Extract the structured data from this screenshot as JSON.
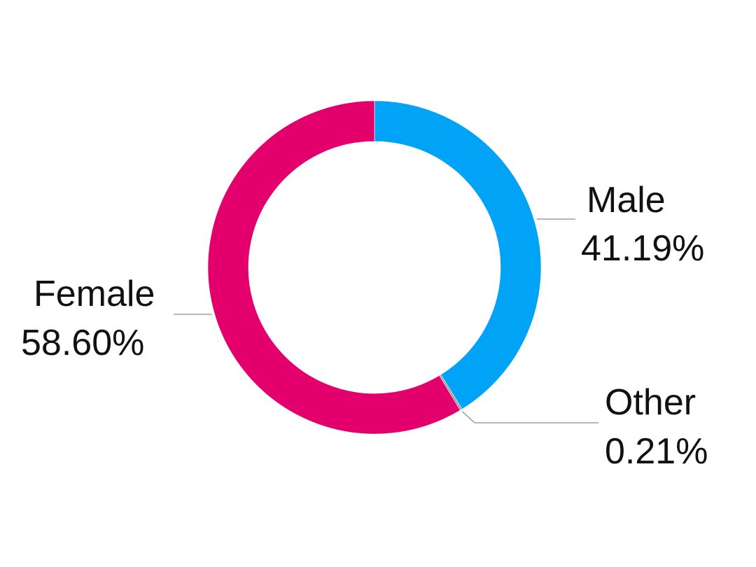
{
  "chart_data": {
    "type": "pie",
    "style": "donut",
    "slices": [
      {
        "name": "Male",
        "label": "Male",
        "value": 41.19,
        "display": "41.19%",
        "color": "#00A3F5"
      },
      {
        "name": "Other",
        "label": "Other",
        "value": 0.21,
        "display": "0.21%",
        "color": "#9B9B9B"
      },
      {
        "name": "Female",
        "label": "Female",
        "value": 58.6,
        "display": "58.60%",
        "color": "#E3006D"
      }
    ]
  }
}
